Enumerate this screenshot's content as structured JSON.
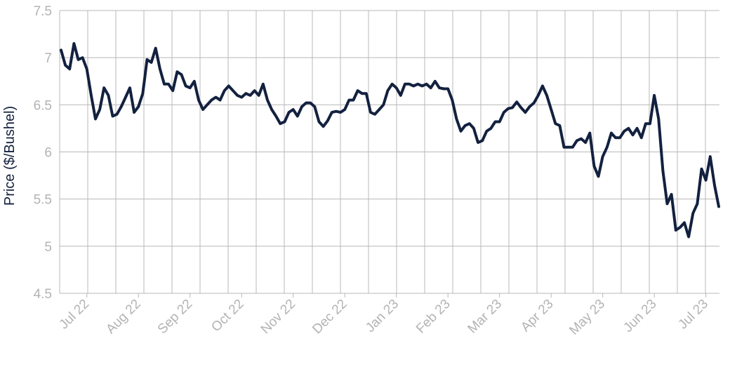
{
  "chart_data": {
    "type": "line",
    "y_label": "Price ($/Bushel)",
    "categories": [
      null,
      null,
      null,
      null,
      null,
      null,
      "Jul 22",
      null,
      null,
      null,
      null,
      null,
      null,
      null,
      null,
      null,
      null,
      null,
      "Aug 22",
      null,
      null,
      null,
      null,
      null,
      null,
      null,
      null,
      null,
      null,
      null,
      "Sep 22",
      null,
      null,
      null,
      null,
      null,
      null,
      null,
      null,
      null,
      null,
      null,
      "Oct 22",
      null,
      null,
      null,
      null,
      null,
      null,
      null,
      null,
      null,
      null,
      null,
      "Nov 22",
      null,
      null,
      null,
      null,
      null,
      null,
      null,
      null,
      null,
      null,
      null,
      "Dec 22",
      null,
      null,
      null,
      null,
      null,
      null,
      null,
      null,
      null,
      null,
      null,
      "Jan 23",
      null,
      null,
      null,
      null,
      null,
      null,
      null,
      null,
      null,
      null,
      null,
      "Feb 23",
      null,
      null,
      null,
      null,
      null,
      null,
      null,
      null,
      null,
      null,
      null,
      "Mar 23",
      null,
      null,
      null,
      null,
      null,
      null,
      null,
      null,
      null,
      null,
      null,
      "Apr 23",
      null,
      null,
      null,
      null,
      null,
      null,
      null,
      null,
      null,
      null,
      null,
      "May 23",
      null,
      null,
      null,
      null,
      null,
      null,
      null,
      null,
      null,
      null,
      null,
      "Jun 23",
      null,
      null,
      null,
      null,
      null,
      null,
      null,
      null,
      null,
      null,
      null,
      "Jul 23",
      null,
      null,
      null
    ],
    "values": [
      7.08,
      6.92,
      6.88,
      7.15,
      6.98,
      7.0,
      6.88,
      6.6,
      6.35,
      6.45,
      6.68,
      6.6,
      6.38,
      6.4,
      6.48,
      6.58,
      6.68,
      6.42,
      6.48,
      6.62,
      6.98,
      6.95,
      7.1,
      6.88,
      6.72,
      6.72,
      6.65,
      6.85,
      6.82,
      6.7,
      6.68,
      6.75,
      6.55,
      6.45,
      6.5,
      6.55,
      6.58,
      6.55,
      6.65,
      6.7,
      6.65,
      6.6,
      6.58,
      6.62,
      6.6,
      6.65,
      6.6,
      6.72,
      6.55,
      6.45,
      6.38,
      6.3,
      6.32,
      6.42,
      6.45,
      6.38,
      6.48,
      6.52,
      6.52,
      6.48,
      6.32,
      6.27,
      6.33,
      6.42,
      6.43,
      6.42,
      6.45,
      6.55,
      6.55,
      6.65,
      6.62,
      6.62,
      6.42,
      6.4,
      6.45,
      6.5,
      6.65,
      6.72,
      6.68,
      6.6,
      6.72,
      6.72,
      6.7,
      6.72,
      6.7,
      6.72,
      6.68,
      6.75,
      6.68,
      6.67,
      6.67,
      6.55,
      6.35,
      6.22,
      6.28,
      6.3,
      6.25,
      6.1,
      6.12,
      6.22,
      6.25,
      6.32,
      6.32,
      6.42,
      6.46,
      6.47,
      6.53,
      6.47,
      6.42,
      6.48,
      6.52,
      6.6,
      6.7,
      6.6,
      6.45,
      6.3,
      6.28,
      6.05,
      6.05,
      6.05,
      6.12,
      6.14,
      6.1,
      6.2,
      5.85,
      5.74,
      5.95,
      6.05,
      6.2,
      6.15,
      6.15,
      6.22,
      6.25,
      6.18,
      6.25,
      6.15,
      6.3,
      6.3,
      6.6,
      6.35,
      5.8,
      5.45,
      5.55,
      5.17,
      5.2,
      5.25,
      5.1,
      5.35,
      5.45,
      5.82,
      5.7,
      5.95,
      5.65,
      5.42
    ],
    "color": "#13213f",
    "ylim": [
      4.5,
      7.5
    ],
    "yticks": [
      7.5,
      7,
      6.5,
      6,
      5.5,
      5,
      4.5
    ],
    "grid": true
  }
}
